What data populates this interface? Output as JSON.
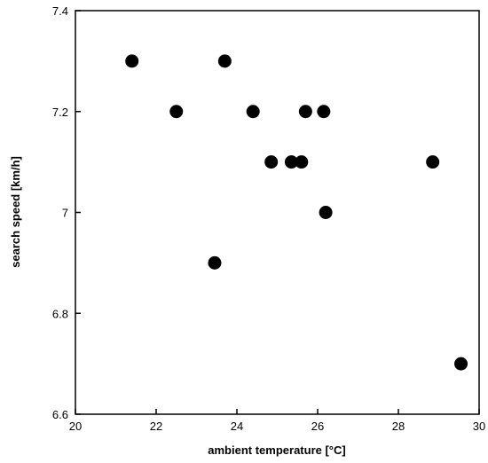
{
  "chart_data": {
    "type": "scatter",
    "title": "",
    "xlabel": "ambient temperature [°C]",
    "ylabel": "search speed [km/h]",
    "xlim": [
      20,
      30
    ],
    "ylim": [
      6.6,
      7.4
    ],
    "xticks": [
      20,
      22,
      24,
      26,
      28,
      30
    ],
    "yticks": [
      6.6,
      6.8,
      7,
      7.2,
      7.4
    ],
    "xtick_labels": [
      "20",
      "22",
      "24",
      "26",
      "28",
      "30"
    ],
    "ytick_labels": [
      "6.6",
      "6.8",
      "7",
      "7.2",
      "7.4"
    ],
    "grid": false,
    "marker_color": "#000000",
    "series": [
      {
        "x": [
          21.4,
          22.5,
          23.45,
          23.7,
          24.4,
          24.85,
          25.35,
          25.6,
          25.7,
          26.15,
          26.2,
          28.85,
          29.55
        ],
        "y": [
          7.3,
          7.2,
          6.9,
          7.3,
          7.2,
          7.1,
          7.1,
          7.1,
          7.2,
          7.2,
          7.0,
          7.1,
          6.7
        ]
      }
    ]
  }
}
